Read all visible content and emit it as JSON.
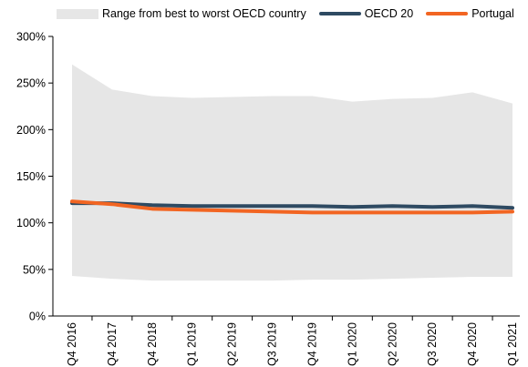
{
  "chart_data": {
    "type": "line",
    "title": "",
    "xlabel": "",
    "ylabel": "",
    "categories": [
      "Q4 2016",
      "Q4 2017",
      "Q4 2018",
      "Q1 2019",
      "Q2 2019",
      "Q3 2019",
      "Q4 2019",
      "Q1 2020",
      "Q2 2020",
      "Q3 2020",
      "Q4 2020",
      "Q1 2021"
    ],
    "ylim": [
      0,
      300
    ],
    "yticks": [
      0,
      50,
      100,
      150,
      200,
      250,
      300
    ],
    "ytick_labels": [
      "0%",
      "50%",
      "100%",
      "150%",
      "200%",
      "250%",
      "300%"
    ],
    "range_band": {
      "name": "Range from best to worst OECD country",
      "color": "#e6e6e6",
      "upper": [
        270,
        243,
        236,
        234,
        235,
        236,
        236,
        230,
        233,
        234,
        240,
        228
      ],
      "lower": [
        43,
        40,
        38,
        38,
        38,
        38,
        39,
        39,
        40,
        41,
        42,
        42
      ]
    },
    "series": [
      {
        "name": "OECD 20",
        "color": "#2e4a62",
        "values": [
          121,
          121,
          119,
          118,
          118,
          118,
          118,
          117,
          118,
          117,
          118,
          116
        ]
      },
      {
        "name": "Portugal",
        "color": "#f26522",
        "values": [
          123,
          120,
          115,
          114,
          113,
          112,
          111,
          111,
          111,
          111,
          111,
          112
        ]
      }
    ],
    "legend": "top",
    "grid": false
  }
}
